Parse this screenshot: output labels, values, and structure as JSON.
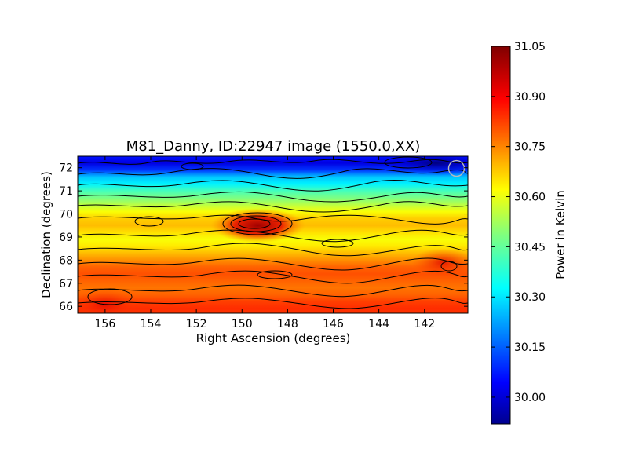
{
  "chart_data": {
    "type": "heatmap",
    "title": "M81_Danny, ID:22947 image (1550.0,XX)",
    "xlabel": "Right Ascension (degrees)",
    "ylabel": "Declination (degrees)",
    "xlim": [
      157.2,
      140.1
    ],
    "ylim": [
      65.7,
      72.5
    ],
    "x_ticks": [
      156,
      154,
      152,
      150,
      148,
      146,
      144,
      142
    ],
    "y_ticks": [
      66,
      67,
      68,
      69,
      70,
      71,
      72
    ],
    "colorbar": {
      "label": "Power in Kelvin",
      "range": [
        29.92,
        31.05
      ],
      "ticks": [
        "31.05",
        "30.90",
        "30.75",
        "30.60",
        "30.45",
        "30.30",
        "30.15",
        "30.00"
      ],
      "tick_values": [
        31.05,
        30.9,
        30.75,
        30.6,
        30.45,
        30.3,
        30.15,
        30.0
      ],
      "colormap": "jet"
    },
    "contours": true,
    "rows": [
      {
        "dec": 72.5,
        "value": 30.08
      },
      {
        "dec": 72.2,
        "value": 30.03
      },
      {
        "dec": 71.9,
        "value": 30.12
      },
      {
        "dec": 71.6,
        "value": 30.28
      },
      {
        "dec": 71.3,
        "value": 30.33
      },
      {
        "dec": 71.0,
        "value": 30.42
      },
      {
        "dec": 70.7,
        "value": 30.48
      },
      {
        "dec": 70.4,
        "value": 30.55
      },
      {
        "dec": 70.1,
        "value": 30.62
      },
      {
        "dec": 69.8,
        "value": 30.68
      },
      {
        "dec": 69.5,
        "value": 30.7
      },
      {
        "dec": 69.2,
        "value": 30.66
      },
      {
        "dec": 68.9,
        "value": 30.62
      },
      {
        "dec": 68.6,
        "value": 30.65
      },
      {
        "dec": 68.3,
        "value": 30.7
      },
      {
        "dec": 68.0,
        "value": 30.75
      },
      {
        "dec": 67.7,
        "value": 30.8
      },
      {
        "dec": 67.4,
        "value": 30.82
      },
      {
        "dec": 67.1,
        "value": 30.8
      },
      {
        "dec": 66.8,
        "value": 30.78
      },
      {
        "dec": 66.5,
        "value": 30.8
      },
      {
        "dec": 66.2,
        "value": 30.84
      },
      {
        "dec": 65.9,
        "value": 30.86
      },
      {
        "dec": 65.7,
        "value": 30.85
      }
    ],
    "features": [
      {
        "label": "hot spot",
        "ra": 149.3,
        "dec": 69.5,
        "value": 31.02
      },
      {
        "label": "cold spot",
        "ra": 141.5,
        "dec": 72.2,
        "value": 29.95
      },
      {
        "label": "warm spot",
        "ra": 156.0,
        "dec": 66.1,
        "value": 30.92
      },
      {
        "label": "warm spot",
        "ra": 141.2,
        "dec": 67.9,
        "value": 30.85
      }
    ],
    "beam_marker": {
      "ra": 140.6,
      "dec": 71.97
    }
  }
}
